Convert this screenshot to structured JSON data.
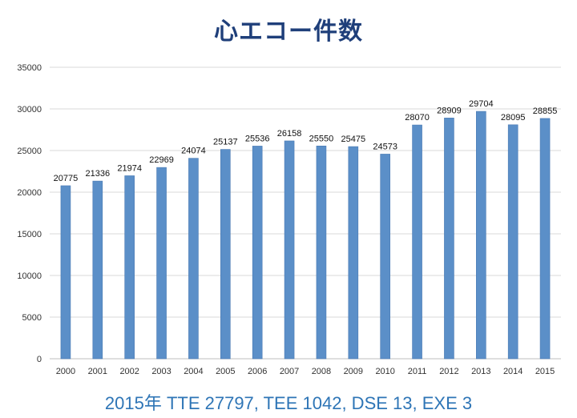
{
  "title": "心エコー件数",
  "footer_note": "2015年 TTE 27797, TEE 1042, DSE 13, EXE 3",
  "colors": {
    "bar": "#5b8fc8",
    "bar_edge": "#4a7ab3",
    "grid": "#d9d9d9",
    "axis": "#bfbfbf",
    "title": "#1f3f7a",
    "footer": "#2e75b6"
  },
  "chart_data": {
    "type": "bar",
    "title": "心エコー件数",
    "xlabel": "",
    "ylabel": "",
    "categories": [
      "2000",
      "2001",
      "2002",
      "2003",
      "2004",
      "2005",
      "2006",
      "2007",
      "2008",
      "2009",
      "2010",
      "2011",
      "2012",
      "2013",
      "2014",
      "2015"
    ],
    "values": [
      20775,
      21336,
      21974,
      22969,
      24074,
      25137,
      25536,
      26158,
      25550,
      25475,
      24573,
      28070,
      28909,
      29704,
      28095,
      28855
    ],
    "ylim": [
      0,
      35000
    ],
    "yticks": [
      0,
      5000,
      10000,
      15000,
      20000,
      25000,
      30000,
      35000
    ],
    "grid": true,
    "data_labels": true,
    "legend": "none"
  }
}
